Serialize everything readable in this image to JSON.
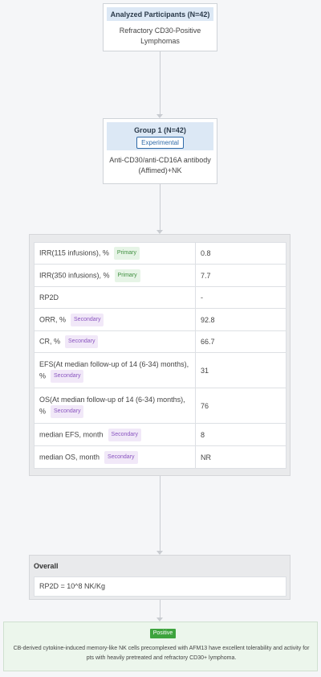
{
  "participants": {
    "title": "Analyzed Participants (N=42)",
    "description": "Refractory CD30-Positive Lymphomas"
  },
  "group": {
    "title": "Group 1 (N=42)",
    "tag": "Experimental",
    "description": "Anti-CD30/anti-CD16A antibody (Affimed)+NK"
  },
  "outcomes": [
    {
      "label": "IRR(115 infusions), %",
      "type": "Primary",
      "value": "0.8"
    },
    {
      "label": "IRR(350 infusions), %",
      "type": "Primary",
      "value": "7.7"
    },
    {
      "label": "RP2D",
      "type": "",
      "value": "-"
    },
    {
      "label": "ORR, %",
      "type": "Secondary",
      "value": "92.8"
    },
    {
      "label": "CR, %",
      "type": "Secondary",
      "value": "66.7"
    },
    {
      "label": "EFS(At median follow-up of 14 (6-34) months), %",
      "type": "Secondary",
      "value": "31"
    },
    {
      "label": "OS(At median follow-up of 14 (6-34) months), %",
      "type": "Secondary",
      "value": "76"
    },
    {
      "label": "median EFS, month",
      "type": "Secondary",
      "value": "8"
    },
    {
      "label": "median OS, month",
      "type": "Secondary",
      "value": "NR"
    }
  ],
  "overall": {
    "title": "Overall",
    "text": "RP2D = 10^8 NK/Kg"
  },
  "conclusion": {
    "badge": "Positive",
    "text": "CB-derived cytokine-induced memory-like NK cells precomplexed with AFM13 have excellent tolerability and activity for pts with heavily pretreated and refractory CD30+ lymphoma."
  },
  "colors": {
    "header_bg": "#dce8f5",
    "primary_badge": "#3f8f3f",
    "secondary_badge": "#8a55c0",
    "positive_badge": "#3ea43e",
    "conclusion_bg": "#ecf6ec"
  }
}
